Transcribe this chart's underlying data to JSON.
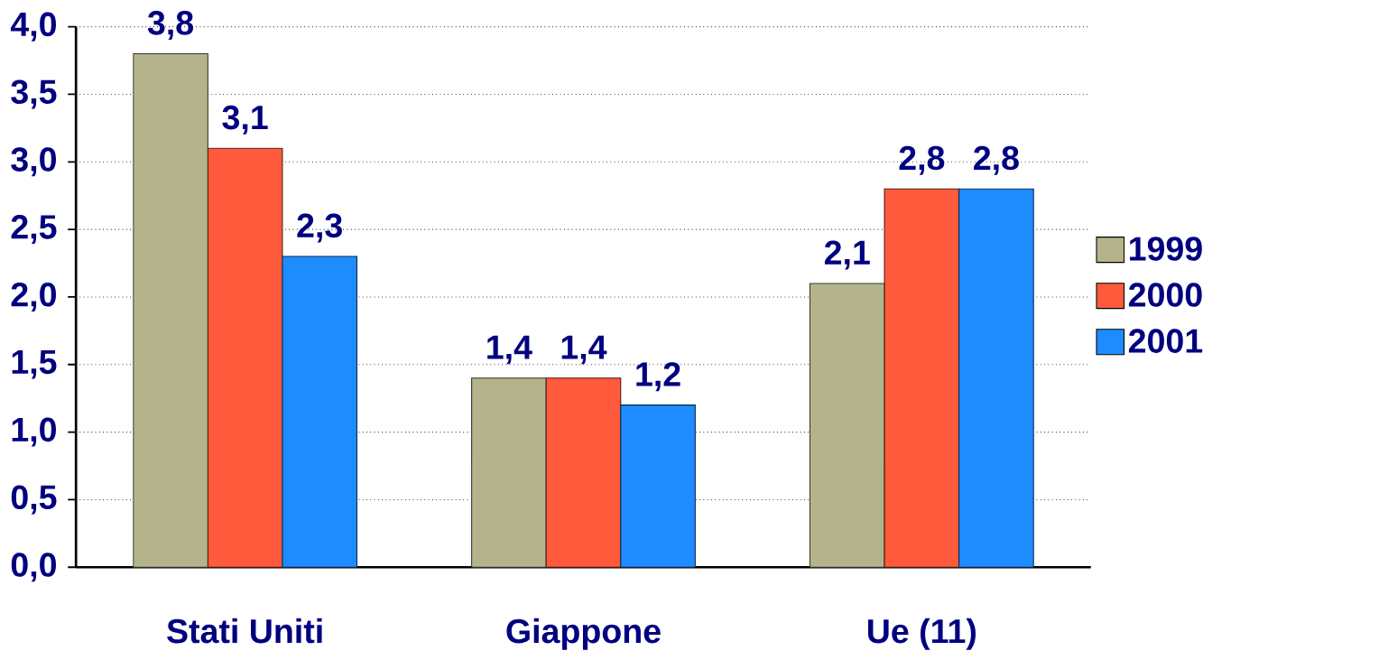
{
  "chart_data": {
    "type": "bar",
    "categories": [
      "Stati Uniti",
      "Giappone",
      "Ue (11)"
    ],
    "series": [
      {
        "name": "1999",
        "color": "#b4b48c",
        "values": [
          3.8,
          1.4,
          2.1
        ],
        "value_labels": [
          "3,8",
          "1,4",
          "2,1"
        ]
      },
      {
        "name": "2000",
        "color": "#ff5a3c",
        "values": [
          3.1,
          1.4,
          2.8
        ],
        "value_labels": [
          "3,1",
          "1,4",
          "2,8"
        ]
      },
      {
        "name": "2001",
        "color": "#1e8cff",
        "values": [
          2.3,
          1.2,
          2.8
        ],
        "value_labels": [
          "2,3",
          "1,2",
          "2,8"
        ]
      }
    ],
    "ylim": [
      0,
      4
    ],
    "yticks": [
      {
        "value": 0,
        "label": "0,0"
      },
      {
        "value": 0.5,
        "label": "0,5"
      },
      {
        "value": 1,
        "label": "1,0"
      },
      {
        "value": 1.5,
        "label": "1,5"
      },
      {
        "value": 2,
        "label": "2,0"
      },
      {
        "value": 2.5,
        "label": "2,5"
      },
      {
        "value": 3,
        "label": "3,0"
      },
      {
        "value": 3.5,
        "label": "3,5"
      },
      {
        "value": 4,
        "label": "4,0"
      }
    ],
    "grid": "y",
    "legend": "right"
  }
}
